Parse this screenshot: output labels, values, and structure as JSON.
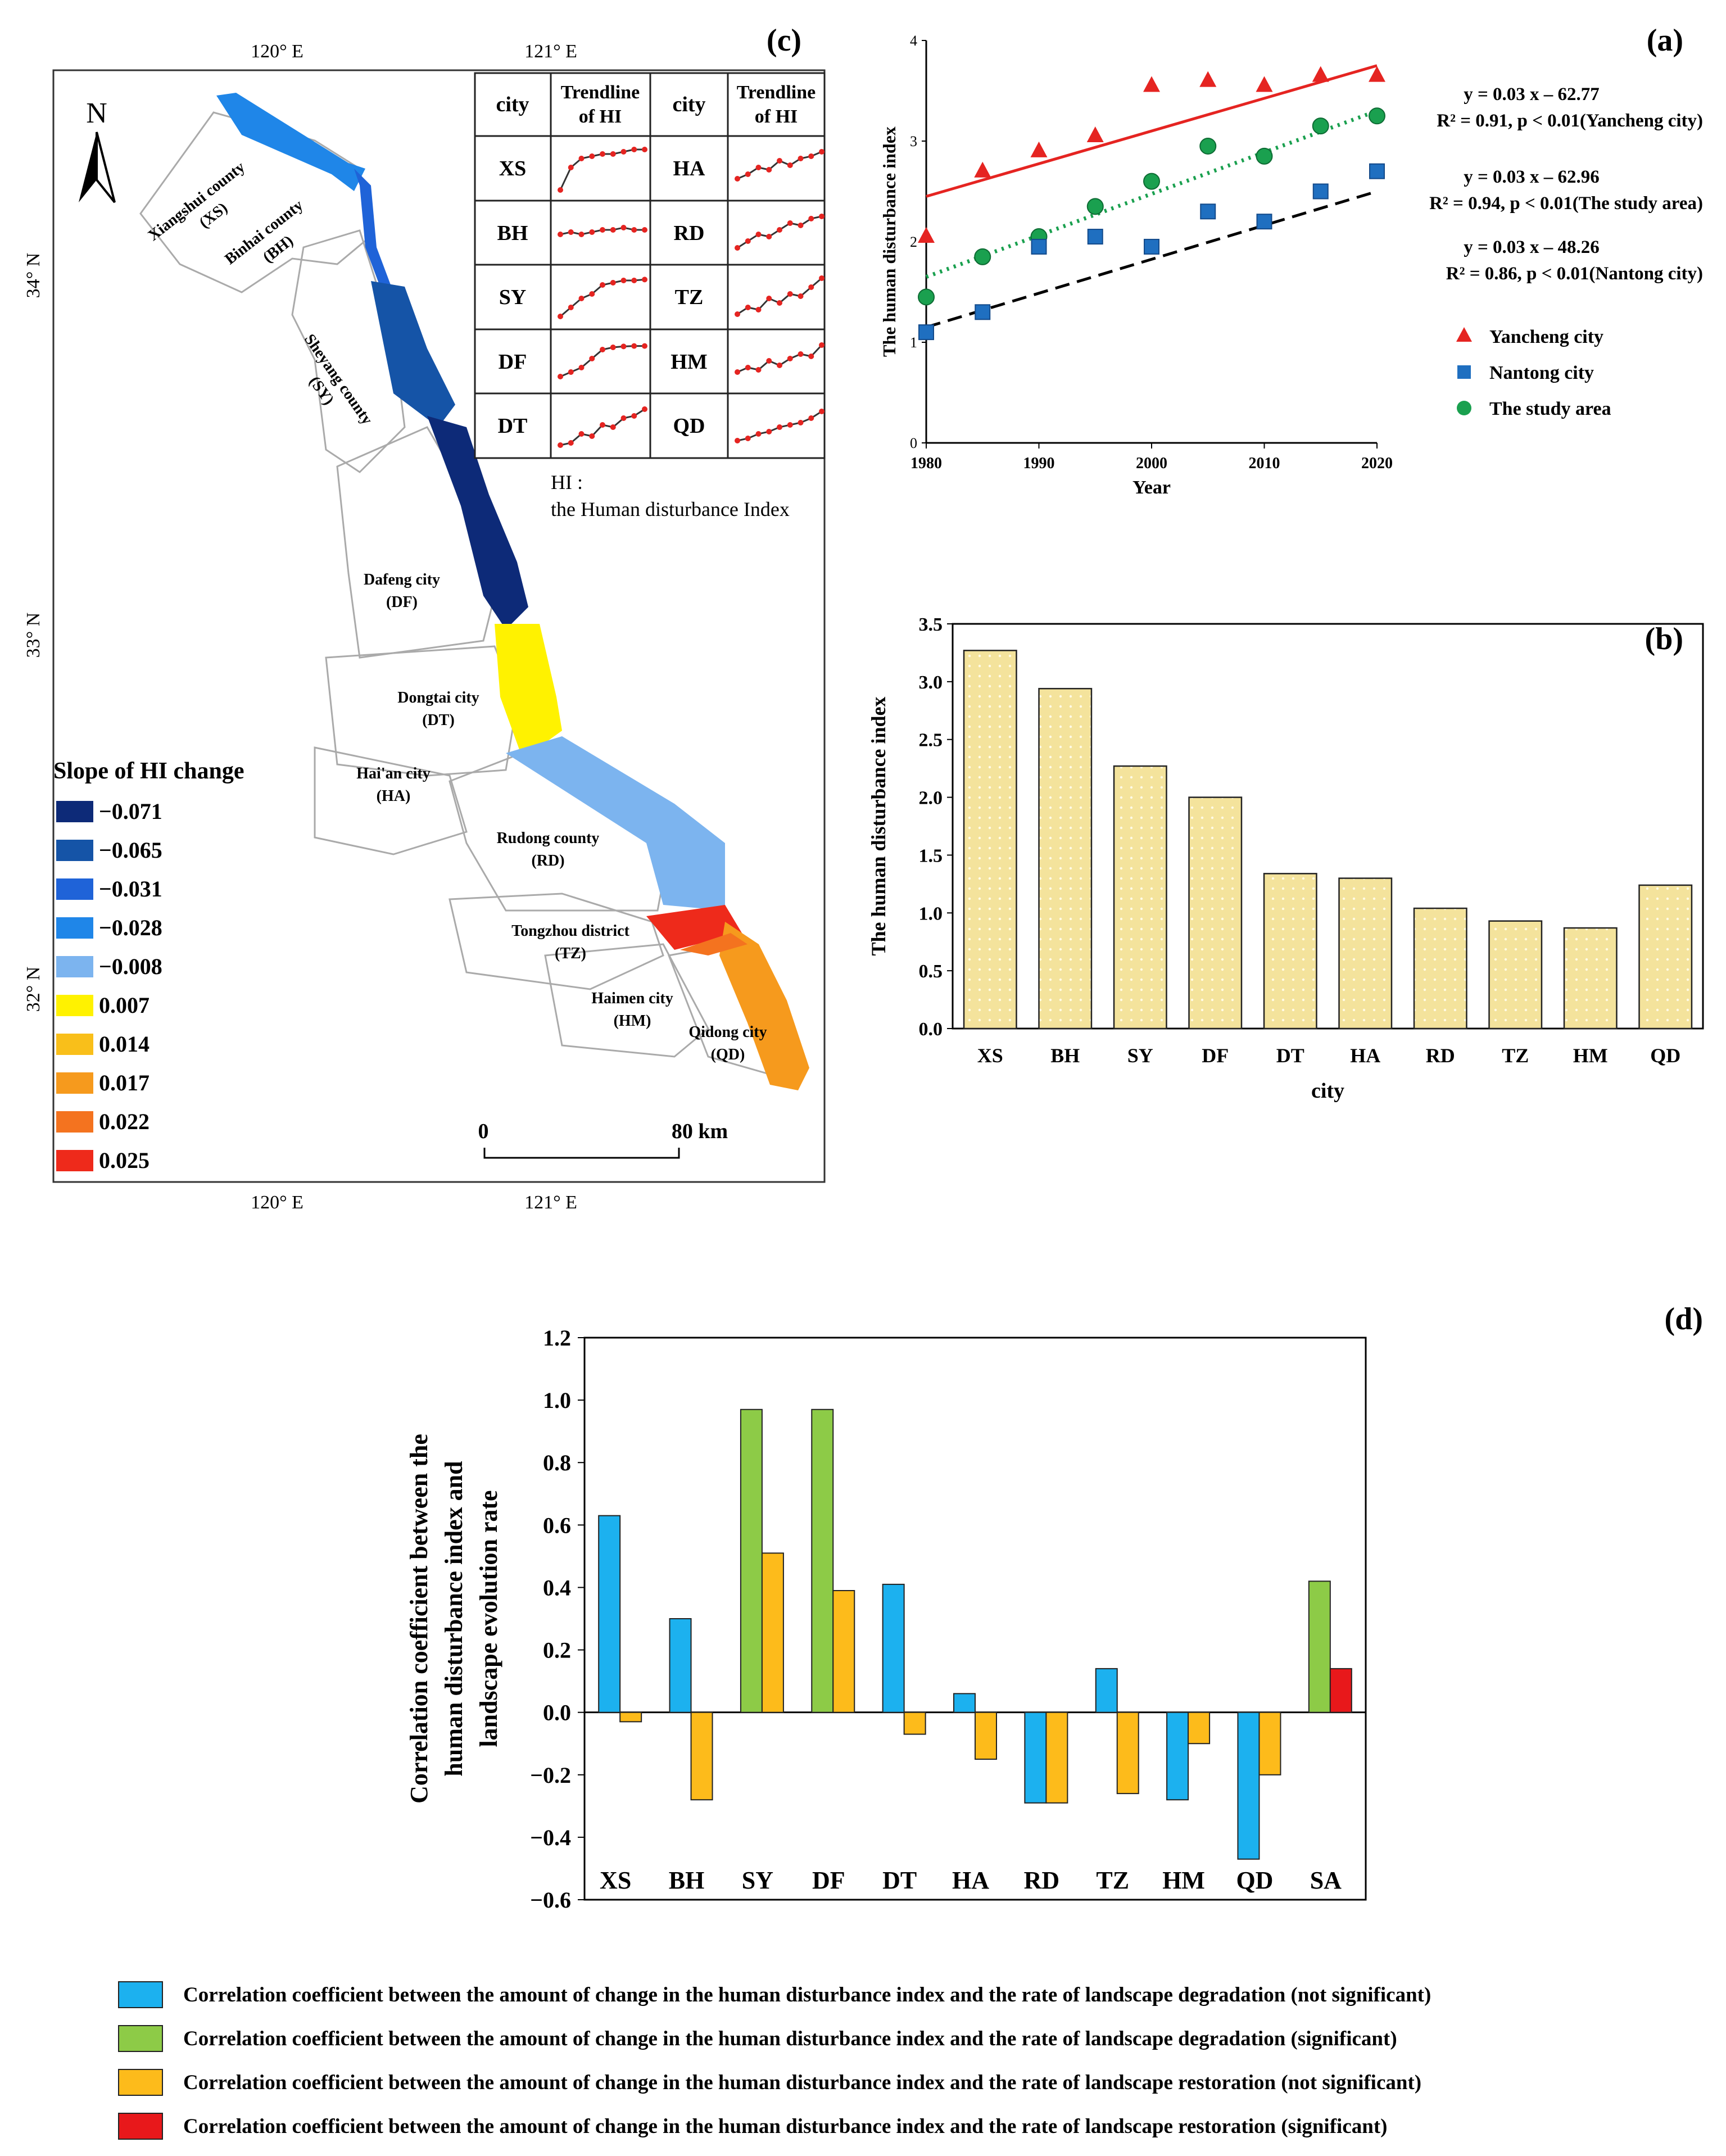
{
  "panel_labels": {
    "a": "(a)",
    "b": "(b)",
    "c": "(c)",
    "d": "(d)"
  },
  "colors": {
    "yancheng": "#e52421",
    "nantong": "#1f6fc0",
    "study_area": "#1aa04f",
    "bar_b": "#f4e39c",
    "blue": "#1cb1ef",
    "green": "#8dcb47",
    "orange": "#fdbb1b",
    "red": "#e8181b"
  },
  "chart_data": [
    {
      "id": "a",
      "type": "scatter",
      "title": "",
      "xlabel": "Year",
      "ylabel": "The human disturbance index",
      "xlim": [
        1980,
        2020
      ],
      "ylim": [
        0,
        4
      ],
      "xticks": [
        "1980",
        "1990",
        "2000",
        "2010",
        "2020"
      ],
      "yticks": [
        "0",
        "1",
        "2",
        "3",
        "4"
      ],
      "x": [
        1980,
        1985,
        1990,
        1995,
        2000,
        2005,
        2010,
        2015,
        2020
      ],
      "series": [
        {
          "name": "Yancheng city",
          "marker": "triangle",
          "color": "#e52421",
          "values": [
            2.05,
            2.7,
            2.9,
            3.05,
            3.55,
            3.6,
            3.55,
            3.65,
            3.65
          ],
          "trend": [
            2.45,
            3.75
          ],
          "trend_style": "solid",
          "equation": "y = 0.03 x – 62.77",
          "stats": "R² = 0.91, p < 0.01(Yancheng city)"
        },
        {
          "name": "The study area",
          "marker": "circle",
          "color": "#1aa04f",
          "values": [
            1.45,
            1.85,
            2.05,
            2.35,
            2.6,
            2.95,
            2.85,
            3.15,
            3.25
          ],
          "trend": [
            1.65,
            3.3
          ],
          "trend_style": "dotted",
          "equation": "y = 0.03 x – 62.96",
          "stats": "R² = 0.94, p < 0.01(The study area)"
        },
        {
          "name": "Nantong city",
          "marker": "square",
          "color": "#1f6fc0",
          "values": [
            1.1,
            1.3,
            1.95,
            2.05,
            1.95,
            2.3,
            2.2,
            2.5,
            2.7
          ],
          "trend": [
            1.15,
            2.5
          ],
          "trend_style": "dashed",
          "equation": "y = 0.03 x – 48.26",
          "stats": "R² = 0.86, p < 0.01(Nantong city)"
        }
      ],
      "legend": [
        "Yancheng city",
        "Nantong city",
        "The study area"
      ]
    },
    {
      "id": "b",
      "type": "bar",
      "xlabel": "city",
      "ylabel": "The human disturbance index",
      "ylim": [
        0,
        3.5
      ],
      "yticks": [
        "0.0",
        "0.5",
        "1.0",
        "1.5",
        "2.0",
        "2.5",
        "3.0",
        "3.5"
      ],
      "categories": [
        "XS",
        "BH",
        "SY",
        "DF",
        "DT",
        "HA",
        "RD",
        "TZ",
        "HM",
        "QD"
      ],
      "values": [
        3.27,
        2.94,
        2.27,
        2.0,
        1.34,
        1.3,
        1.04,
        0.93,
        0.87,
        1.24
      ]
    },
    {
      "id": "d",
      "type": "bar",
      "ylabel": "Correlation coefficient between the human disturbance index and landscape evolution rate",
      "ylabel_lines": [
        "Correlation coefficient between the",
        "human disturbance index and",
        "landscape evolution rate"
      ],
      "ylim": [
        -0.6,
        1.2
      ],
      "yticks": [
        "1.2",
        "1.0",
        "0.8",
        "0.6",
        "0.4",
        "0.2",
        "0.0",
        "−0.2",
        "−0.4",
        "−0.6"
      ],
      "categories": [
        "XS",
        "BH",
        "SY",
        "DF",
        "DT",
        "HA",
        "RD",
        "TZ",
        "HM",
        "QD",
        "SA"
      ],
      "degradation": [
        0.63,
        0.3,
        0.97,
        0.97,
        0.41,
        0.06,
        -0.29,
        0.14,
        -0.28,
        -0.47,
        0.42
      ],
      "degradation_significant": [
        false,
        false,
        true,
        true,
        false,
        false,
        false,
        false,
        false,
        false,
        true
      ],
      "restoration": [
        -0.03,
        -0.28,
        0.51,
        0.39,
        -0.07,
        -0.15,
        -0.29,
        -0.26,
        -0.1,
        -0.2,
        0.14
      ],
      "restoration_significant": [
        false,
        false,
        false,
        false,
        false,
        false,
        false,
        false,
        false,
        false,
        true
      ],
      "legend": [
        {
          "color": "#1cb1ef",
          "label": "Correlation coefficient between the amount of change in the human disturbance index and the rate of landscape degradation (not significant)"
        },
        {
          "color": "#8dcb47",
          "label": "Correlation coefficient between the amount of change in the human disturbance index and the rate of landscape degradation (significant)"
        },
        {
          "color": "#fdbb1b",
          "label": "Correlation coefficient between the amount of change in the human disturbance index and the rate of landscape restoration (not significant)"
        },
        {
          "color": "#e8181b",
          "label": "Correlation coefficient between the amount of change in the human disturbance index and the rate of landscape restoration (significant)"
        }
      ]
    }
  ],
  "map": {
    "lon_labels": [
      "120° E",
      "121° E"
    ],
    "lat_labels": [
      "34° N",
      "33° N",
      "32° N"
    ],
    "north": "N",
    "legend_title": "Slope of HI change",
    "legend": [
      {
        "value": "−0.071",
        "color": "#0d2a78"
      },
      {
        "value": "−0.065",
        "color": "#1554a7"
      },
      {
        "value": "−0.031",
        "color": "#1f63d8"
      },
      {
        "value": "−0.028",
        "color": "#1f86e8"
      },
      {
        "value": "−0.008",
        "color": "#7cb4ef"
      },
      {
        "value": "0.007",
        "color": "#fff200"
      },
      {
        "value": "0.014",
        "color": "#f9bf1a"
      },
      {
        "value": "0.017",
        "color": "#f69a1d"
      },
      {
        "value": "0.022",
        "color": "#f4731f"
      },
      {
        "value": "0.025",
        "color": "#ee2a1b"
      }
    ],
    "scale": {
      "start": "0",
      "end": "80 km"
    },
    "hi_note": [
      "HI :",
      "the Human disturbance Index"
    ],
    "table_headers": [
      "city",
      "Trendline of HI",
      "city",
      "Trendline of HI"
    ],
    "table_left": [
      "XS",
      "BH",
      "SY",
      "DF",
      "DT"
    ],
    "table_right": [
      "HA",
      "RD",
      "TZ",
      "HM",
      "QD"
    ],
    "regions": [
      [
        "Xiangshui county",
        "(XS)"
      ],
      [
        "Binhai county",
        "(BH)"
      ],
      [
        "Sheyang county",
        "(SY)"
      ],
      [
        "Dafeng city",
        "(DF)"
      ],
      [
        "Dongtai city",
        "(DT)"
      ],
      [
        "Hai'an city",
        "(HA)"
      ],
      [
        "Rudong county",
        "(RD)"
      ],
      [
        "Tongzhou district",
        "(TZ)"
      ],
      [
        "Haimen city",
        "(HM)"
      ],
      [
        "Qidong city",
        "(QD)"
      ]
    ]
  }
}
